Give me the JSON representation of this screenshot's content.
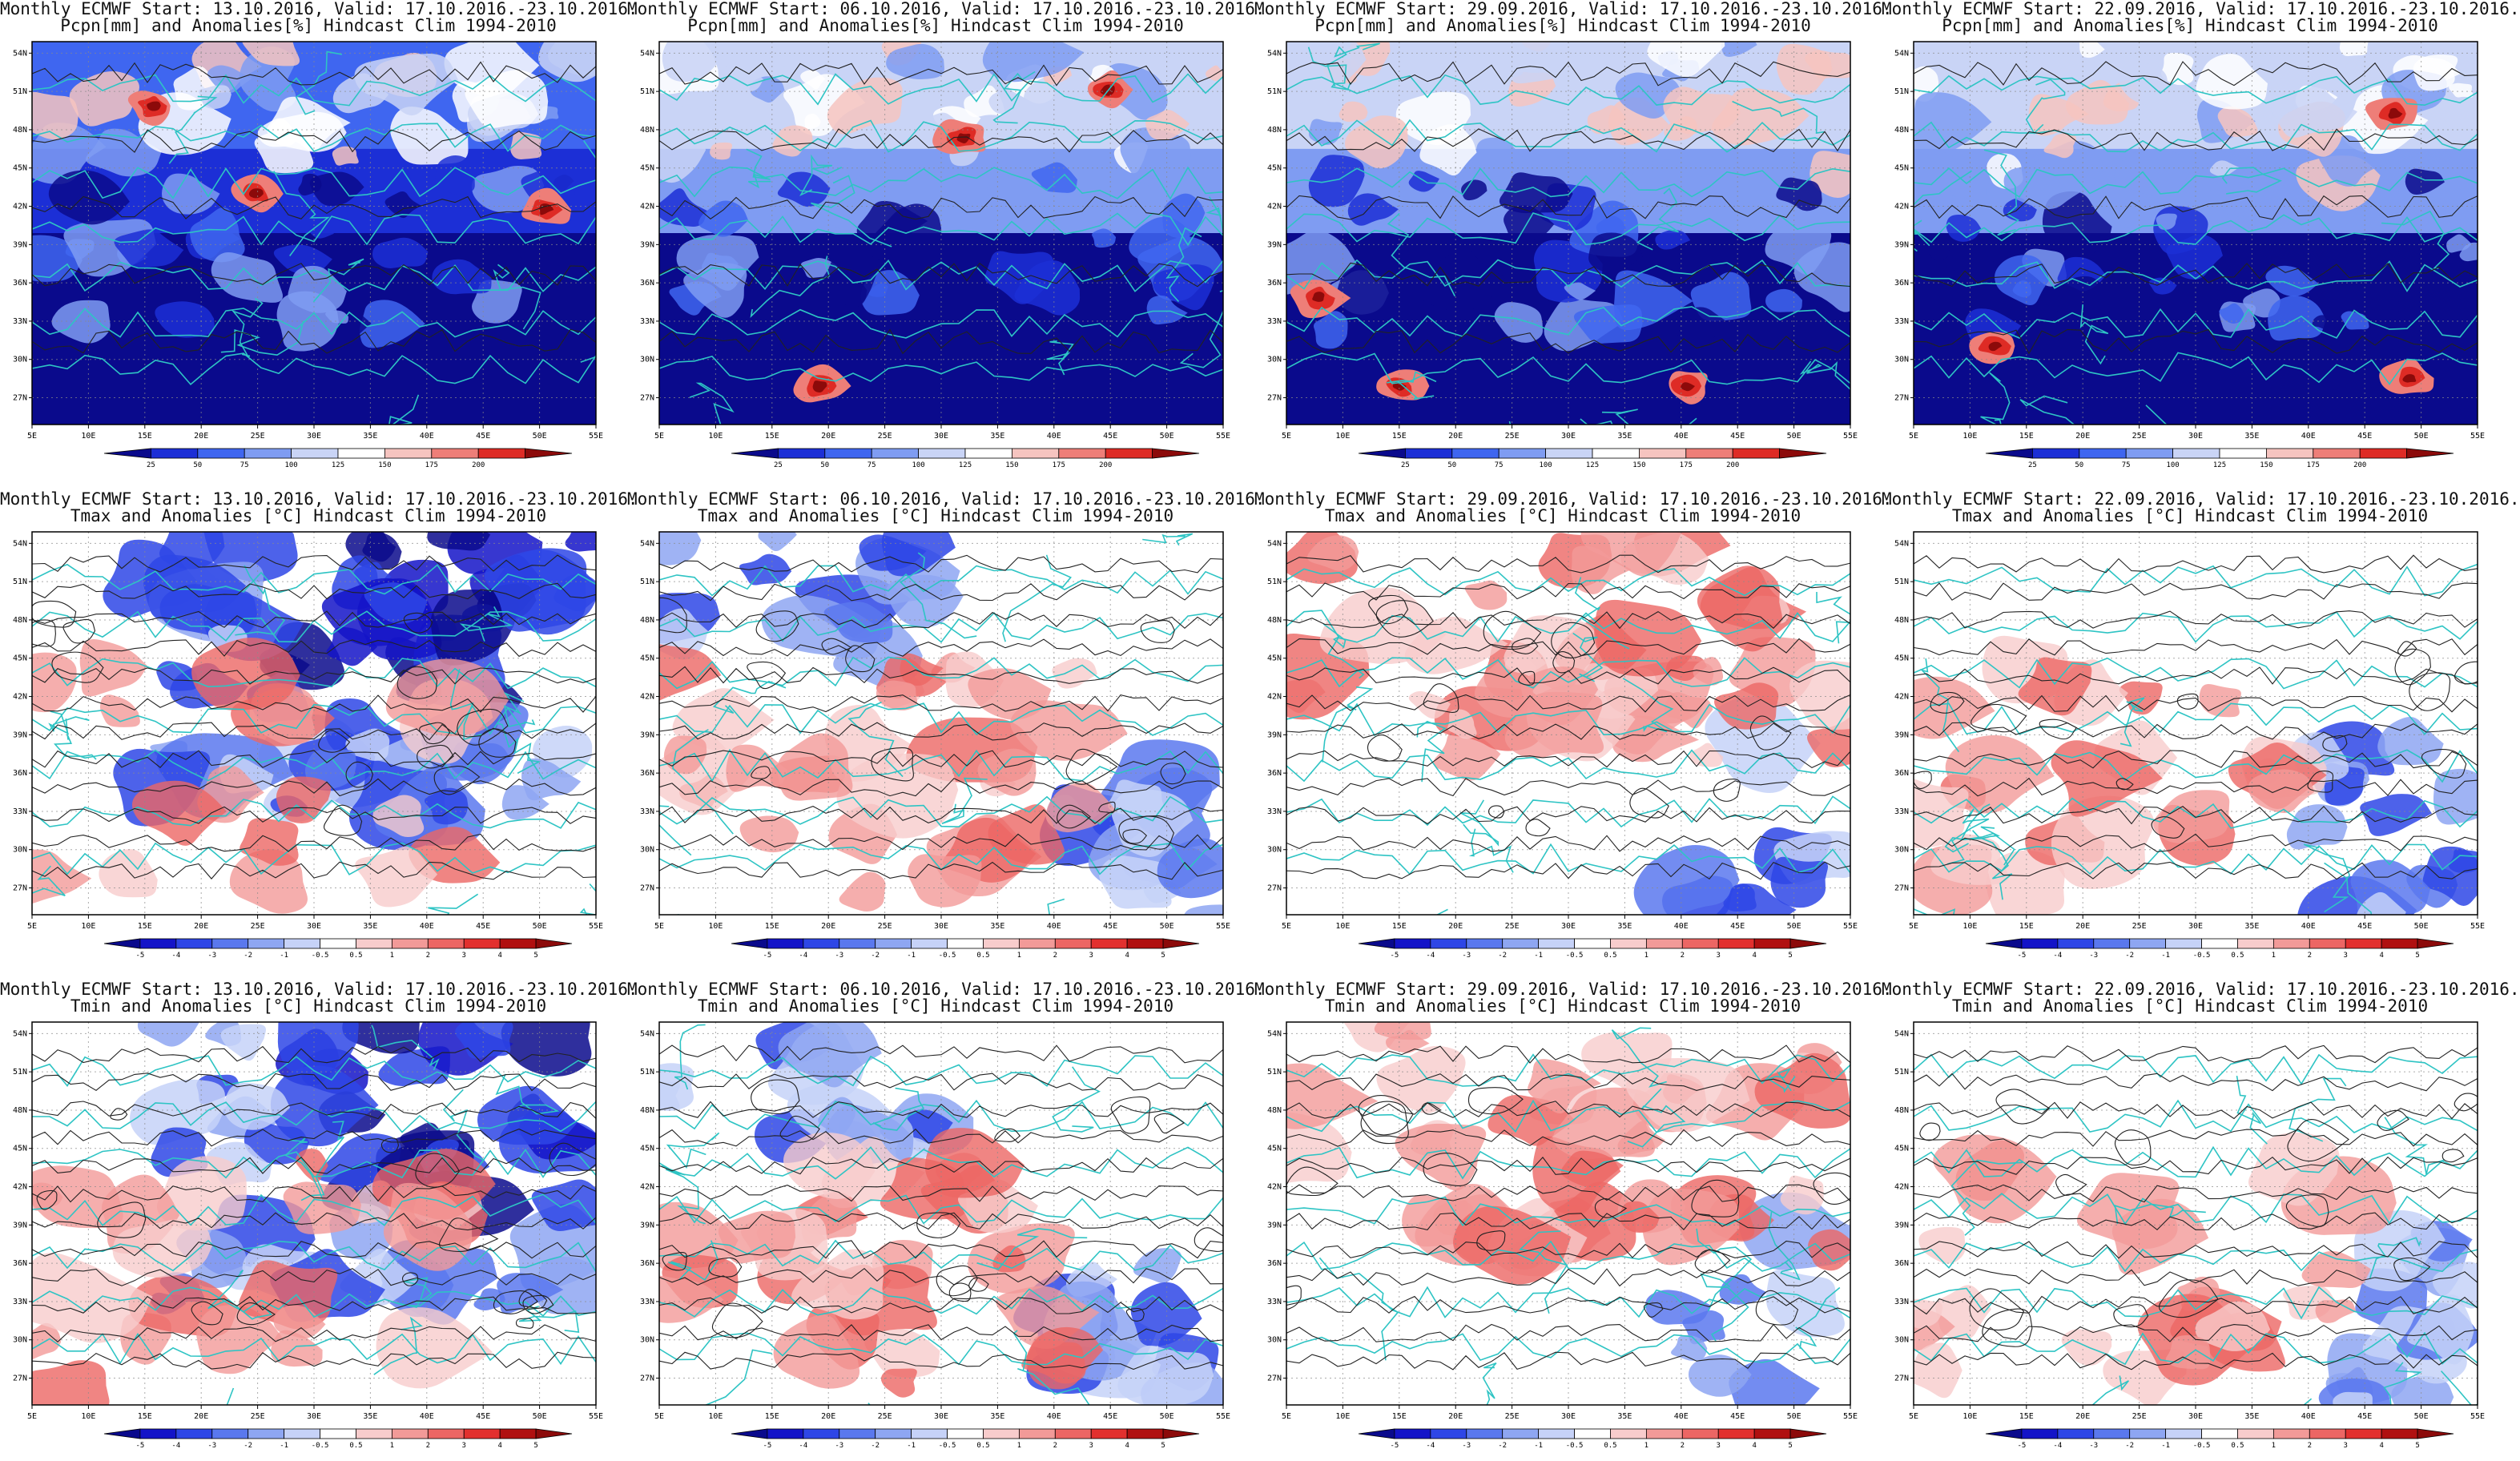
{
  "rows": [
    {
      "variable_line": "Pcpn[mm] and Anomalies[%] Hindcast Clim 1994-2010",
      "colorbar": {
        "labels": [
          "25",
          "50",
          "75",
          "100",
          "125",
          "150",
          "175",
          "200"
        ],
        "colors": [
          "#0a0a8c",
          "#1c2fd6",
          "#3f66f0",
          "#7f9cf2",
          "#c9d4f6",
          "#ffffff",
          "#f6c4c0",
          "#ee7e78",
          "#de2b25",
          "#8c0a0a"
        ]
      },
      "panels": [
        {
          "title": "Monthly ECMWF Start: 13.10.2016, Valid: 17.10.2016.-23.10.2016."
        },
        {
          "title": "Monthly ECMWF Start: 06.10.2016, Valid: 17.10.2016.-23.10.2016."
        },
        {
          "title": "Monthly ECMWF Start: 29.09.2016, Valid: 17.10.2016.-23.10.2016."
        },
        {
          "title": "Monthly ECMWF Start: 22.09.2016, Valid: 17.10.2016.-23.10.2016."
        }
      ]
    },
    {
      "variable_line": "Tmax and Anomalies [°C] Hindcast Clim 1994-2010",
      "colorbar": {
        "labels": [
          "-5",
          "-4",
          "-3",
          "-2",
          "-1",
          "-0.5",
          "0.5",
          "1",
          "2",
          "3",
          "4",
          "5"
        ],
        "colors": [
          "#0a0a8c",
          "#1414c8",
          "#2e46e6",
          "#5a78ee",
          "#8ea6f2",
          "#c6d2f8",
          "#ffffff",
          "#f8cccc",
          "#f29a98",
          "#ec6664",
          "#e2302e",
          "#b01010",
          "#8c0a0a"
        ]
      },
      "panels": [
        {
          "title": "Monthly ECMWF Start: 13.10.2016, Valid: 17.10.2016.-23.10.2016."
        },
        {
          "title": "Monthly ECMWF Start: 06.10.2016, Valid: 17.10.2016.-23.10.2016."
        },
        {
          "title": "Monthly ECMWF Start: 29.09.2016, Valid: 17.10.2016.-23.10.2016."
        },
        {
          "title": "Monthly ECMWF Start: 22.09.2016, Valid: 17.10.2016.-23.10.2016."
        }
      ]
    },
    {
      "variable_line": "Tmin and Anomalies [°C] Hindcast Clim 1994-2010",
      "colorbar": {
        "labels": [
          "-5",
          "-4",
          "-3",
          "-2",
          "-1",
          "-0.5",
          "0.5",
          "1",
          "2",
          "3",
          "4",
          "5"
        ],
        "colors": [
          "#0a0a8c",
          "#1414c8",
          "#2e46e6",
          "#5a78ee",
          "#8ea6f2",
          "#c6d2f8",
          "#ffffff",
          "#f8cccc",
          "#f29a98",
          "#ec6664",
          "#e2302e",
          "#b01010",
          "#8c0a0a"
        ]
      },
      "panels": [
        {
          "title": "Monthly ECMWF Start: 13.10.2016, Valid: 17.10.2016.-23.10.2016."
        },
        {
          "title": "Monthly ECMWF Start: 06.10.2016, Valid: 17.10.2016.-23.10.2016."
        },
        {
          "title": "Monthly ECMWF Start: 29.09.2016, Valid: 17.10.2016.-23.10.2016."
        },
        {
          "title": "Monthly ECMWF Start: 22.09.2016, Valid: 17.10.2016.-23.10.2016."
        }
      ]
    }
  ],
  "axes": {
    "x_ticks": [
      "5E",
      "10E",
      "15E",
      "20E",
      "25E",
      "30E",
      "35E",
      "40E",
      "45E",
      "50E",
      "55E"
    ],
    "y_ticks": [
      "27N",
      "30N",
      "33N",
      "36N",
      "39N",
      "42N",
      "45N",
      "48N",
      "51N",
      "54N"
    ]
  }
}
